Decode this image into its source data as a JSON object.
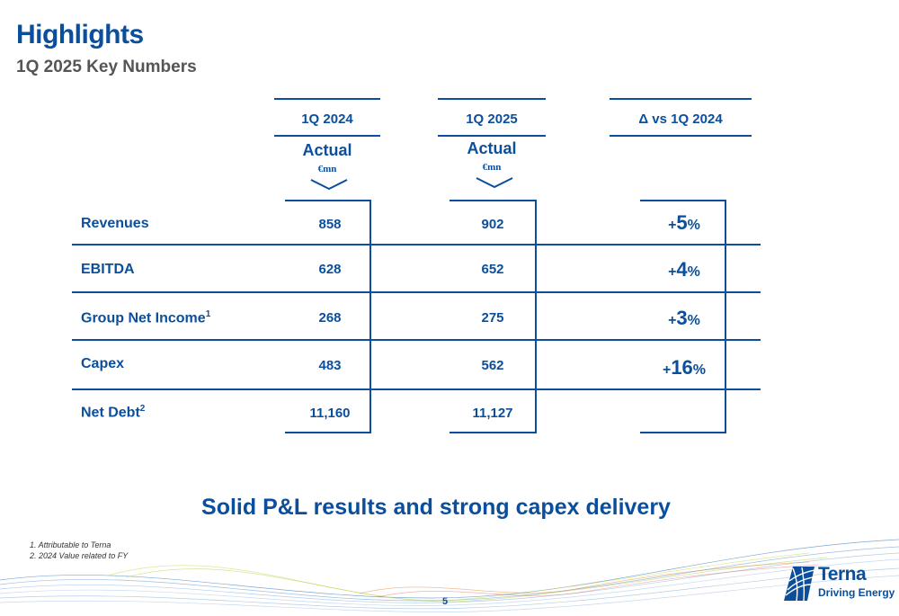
{
  "header": {
    "title": "Highlights",
    "subtitle": "1Q 2025 Key Numbers"
  },
  "table": {
    "columns": [
      {
        "period": "1Q 2024",
        "basis": "Actual",
        "unit": "€mn"
      },
      {
        "period": "1Q 2025",
        "basis": "Actual",
        "unit": "€mn"
      },
      {
        "period": "Δ vs 1Q 2024"
      }
    ],
    "rows": [
      {
        "label": "Revenues",
        "sup": "",
        "v2024": "858",
        "v2025": "902",
        "delta_sign": "+",
        "delta_num": "5",
        "delta_pct": "%"
      },
      {
        "label": "EBITDA",
        "sup": "",
        "v2024": "628",
        "v2025": "652",
        "delta_sign": "+",
        "delta_num": "4",
        "delta_pct": "%"
      },
      {
        "label": "Group Net Income",
        "sup": "1",
        "v2024": "268",
        "v2025": "275",
        "delta_sign": "+",
        "delta_num": "3",
        "delta_pct": "%"
      },
      {
        "label": "Capex",
        "sup": "",
        "v2024": "483",
        "v2025": "562",
        "delta_sign": "+",
        "delta_num": "16",
        "delta_pct": "%"
      },
      {
        "label": "Net Debt",
        "sup": "2",
        "v2024": "11,160",
        "v2025": "11,127",
        "delta_sign": "",
        "delta_num": "",
        "delta_pct": ""
      }
    ]
  },
  "tagline": "Solid P&L results and strong capex delivery",
  "footnotes": [
    "1. Attributable to Terna",
    "2. 2024 Value related to FY"
  ],
  "page_number": "5",
  "logo": {
    "name": "Terna",
    "tagline": "Driving Energy"
  },
  "colors": {
    "primary": "#0b4f9c",
    "subtitle": "#555555"
  }
}
